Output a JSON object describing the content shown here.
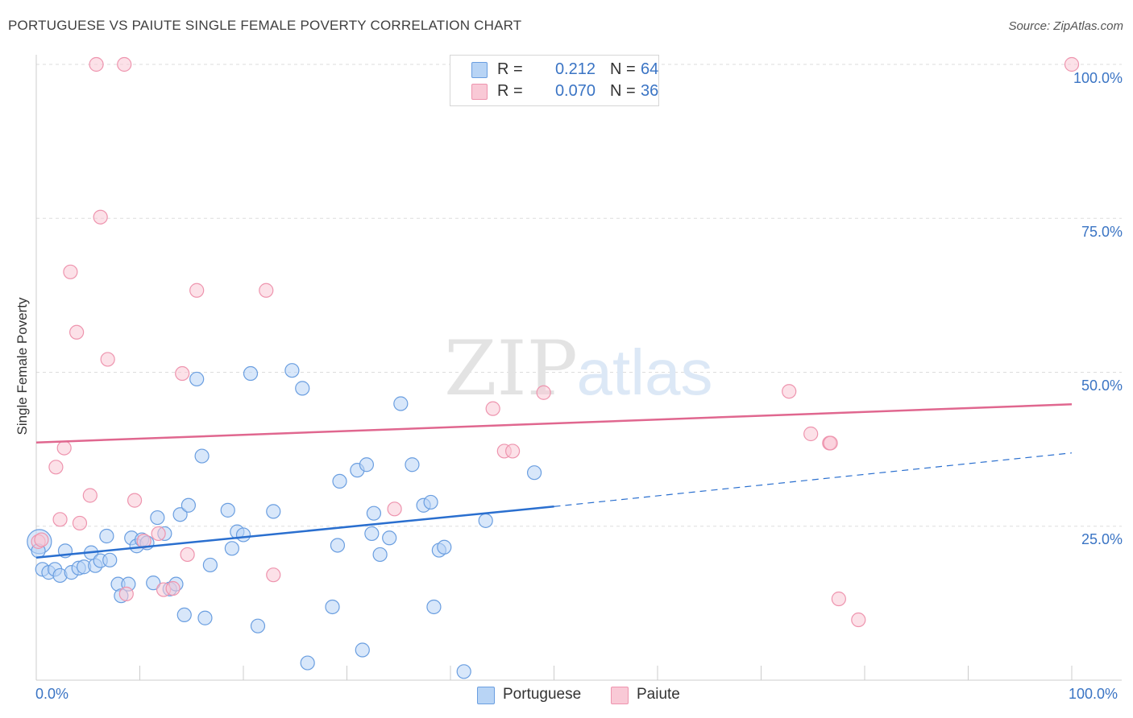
{
  "title": "PORTUGUESE VS PAIUTE SINGLE FEMALE POVERTY CORRELATION CHART",
  "source": "Source: ZipAtlas.com",
  "colors": {
    "portuguese_fill": "#b8d4f5",
    "portuguese_stroke": "#6a9ee0",
    "portuguese_line": "#2a6fcf",
    "paiute_fill": "#f9c9d6",
    "paiute_stroke": "#ee94ae",
    "paiute_line": "#e0678f",
    "axis_text": "#3a74c4",
    "grid": "#dddddd"
  },
  "legend_top": {
    "rows": [
      {
        "r_label": "R =",
        "r_value": "0.212",
        "n_label": "N =",
        "n_value": "64"
      },
      {
        "r_label": "R =",
        "r_value": "0.070",
        "n_label": "N =",
        "n_value": "36"
      }
    ]
  },
  "legend_bottom": {
    "items": [
      {
        "label": "Portuguese"
      },
      {
        "label": "Paiute"
      }
    ]
  },
  "watermark": {
    "zip": "ZIP",
    "atlas": "atlas"
  },
  "chart_data": {
    "type": "scatter",
    "title": "PORTUGUESE VS PAIUTE SINGLE FEMALE POVERTY CORRELATION CHART",
    "xlabel": "",
    "ylabel": "Single Female Poverty",
    "xlim": [
      0,
      100
    ],
    "ylim": [
      0,
      100
    ],
    "x_tick_labels": [
      "0.0%",
      "100.0%"
    ],
    "y_tick_labels": [
      "25.0%",
      "50.0%",
      "75.0%",
      "100.0%"
    ],
    "y_tick_values": [
      25,
      50,
      75,
      100
    ],
    "grid": true,
    "legend_position": "top-center",
    "series": [
      {
        "name": "Portuguese",
        "r": 0.212,
        "n": 64,
        "trend": {
          "x0": 0,
          "y0": 19.9,
          "x1": 50,
          "y1": 28.2,
          "dashed_to_x": 100,
          "dashed_to_y": 36.9
        },
        "points": [
          {
            "x": 0.3,
            "y": 22.5,
            "big": true
          },
          {
            "x": 0.6,
            "y": 18.0
          },
          {
            "x": 1.2,
            "y": 17.5
          },
          {
            "x": 1.8,
            "y": 18.0
          },
          {
            "x": 2.3,
            "y": 17.0
          },
          {
            "x": 2.8,
            "y": 21.0
          },
          {
            "x": 3.4,
            "y": 17.5
          },
          {
            "x": 4.1,
            "y": 18.2
          },
          {
            "x": 4.6,
            "y": 18.4
          },
          {
            "x": 5.3,
            "y": 20.7
          },
          {
            "x": 5.7,
            "y": 18.6
          },
          {
            "x": 6.2,
            "y": 19.4
          },
          {
            "x": 7.1,
            "y": 19.5
          },
          {
            "x": 6.8,
            "y": 23.4
          },
          {
            "x": 7.9,
            "y": 15.6
          },
          {
            "x": 8.2,
            "y": 13.7
          },
          {
            "x": 8.9,
            "y": 15.6
          },
          {
            "x": 9.2,
            "y": 23.1
          },
          {
            "x": 9.7,
            "y": 21.8
          },
          {
            "x": 10.2,
            "y": 22.8
          },
          {
            "x": 10.7,
            "y": 22.3
          },
          {
            "x": 11.3,
            "y": 15.8
          },
          {
            "x": 11.7,
            "y": 26.4
          },
          {
            "x": 12.4,
            "y": 23.8
          },
          {
            "x": 12.9,
            "y": 14.8
          },
          {
            "x": 13.5,
            "y": 15.6
          },
          {
            "x": 13.9,
            "y": 26.9
          },
          {
            "x": 14.3,
            "y": 10.6
          },
          {
            "x": 14.7,
            "y": 28.4
          },
          {
            "x": 15.5,
            "y": 48.9
          },
          {
            "x": 16.0,
            "y": 36.4
          },
          {
            "x": 16.3,
            "y": 10.1
          },
          {
            "x": 16.8,
            "y": 18.7
          },
          {
            "x": 18.5,
            "y": 27.6
          },
          {
            "x": 18.9,
            "y": 21.4
          },
          {
            "x": 19.4,
            "y": 24.1
          },
          {
            "x": 20.0,
            "y": 23.6
          },
          {
            "x": 20.7,
            "y": 49.8
          },
          {
            "x": 21.4,
            "y": 8.8
          },
          {
            "x": 22.9,
            "y": 27.4
          },
          {
            "x": 24.7,
            "y": 50.3
          },
          {
            "x": 25.7,
            "y": 47.4
          },
          {
            "x": 26.2,
            "y": 2.8
          },
          {
            "x": 28.6,
            "y": 11.9
          },
          {
            "x": 29.1,
            "y": 21.9
          },
          {
            "x": 29.3,
            "y": 32.3
          },
          {
            "x": 31.0,
            "y": 34.1
          },
          {
            "x": 31.5,
            "y": 4.9
          },
          {
            "x": 31.9,
            "y": 35.0
          },
          {
            "x": 32.4,
            "y": 23.8
          },
          {
            "x": 32.6,
            "y": 27.1
          },
          {
            "x": 33.2,
            "y": 20.4
          },
          {
            "x": 34.1,
            "y": 23.1
          },
          {
            "x": 35.2,
            "y": 44.9
          },
          {
            "x": 36.3,
            "y": 35.0
          },
          {
            "x": 37.4,
            "y": 28.4
          },
          {
            "x": 38.1,
            "y": 28.9
          },
          {
            "x": 38.4,
            "y": 11.9
          },
          {
            "x": 38.9,
            "y": 21.1
          },
          {
            "x": 39.4,
            "y": 21.6
          },
          {
            "x": 41.3,
            "y": 1.4
          },
          {
            "x": 43.4,
            "y": 25.9
          },
          {
            "x": 48.1,
            "y": 33.7
          },
          {
            "x": 0.2,
            "y": 21.0
          }
        ]
      },
      {
        "name": "Paiute",
        "r": 0.07,
        "n": 36,
        "trend": {
          "x0": 0,
          "y0": 38.6,
          "x1": 100,
          "y1": 44.8
        },
        "points": [
          {
            "x": 0.2,
            "y": 22.5
          },
          {
            "x": 0.5,
            "y": 22.8
          },
          {
            "x": 1.9,
            "y": 34.6
          },
          {
            "x": 2.3,
            "y": 26.1
          },
          {
            "x": 2.7,
            "y": 37.7
          },
          {
            "x": 3.3,
            "y": 66.3
          },
          {
            "x": 3.9,
            "y": 56.5
          },
          {
            "x": 4.2,
            "y": 25.5
          },
          {
            "x": 5.2,
            "y": 30.0
          },
          {
            "x": 5.8,
            "y": 100.0
          },
          {
            "x": 6.2,
            "y": 75.2
          },
          {
            "x": 6.9,
            "y": 52.1
          },
          {
            "x": 8.5,
            "y": 100.0
          },
          {
            "x": 8.7,
            "y": 14.0
          },
          {
            "x": 9.5,
            "y": 29.2
          },
          {
            "x": 10.4,
            "y": 22.6
          },
          {
            "x": 11.8,
            "y": 23.8
          },
          {
            "x": 12.3,
            "y": 14.7
          },
          {
            "x": 13.2,
            "y": 14.9
          },
          {
            "x": 14.1,
            "y": 49.8
          },
          {
            "x": 14.6,
            "y": 20.4
          },
          {
            "x": 15.5,
            "y": 63.3
          },
          {
            "x": 22.2,
            "y": 63.3
          },
          {
            "x": 22.9,
            "y": 17.1
          },
          {
            "x": 34.6,
            "y": 27.8
          },
          {
            "x": 44.1,
            "y": 44.1
          },
          {
            "x": 45.2,
            "y": 37.2
          },
          {
            "x": 46.0,
            "y": 37.2
          },
          {
            "x": 49.0,
            "y": 46.7
          },
          {
            "x": 72.7,
            "y": 46.9
          },
          {
            "x": 74.8,
            "y": 40.0
          },
          {
            "x": 76.6,
            "y": 38.5
          },
          {
            "x": 76.7,
            "y": 38.5
          },
          {
            "x": 77.5,
            "y": 13.2
          },
          {
            "x": 79.4,
            "y": 9.8
          },
          {
            "x": 100.0,
            "y": 100.0
          }
        ]
      }
    ]
  }
}
